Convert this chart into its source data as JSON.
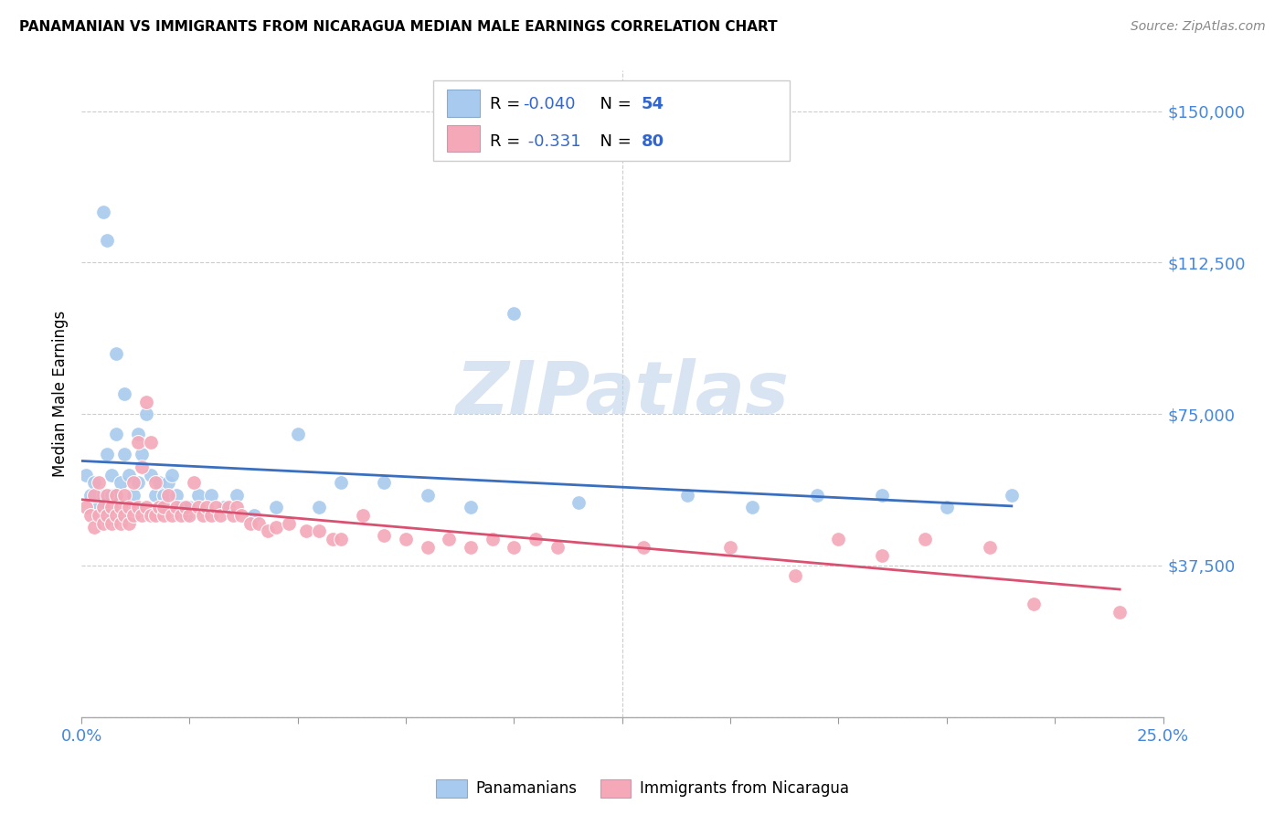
{
  "title": "PANAMANIAN VS IMMIGRANTS FROM NICARAGUA MEDIAN MALE EARNINGS CORRELATION CHART",
  "source": "Source: ZipAtlas.com",
  "ylabel": "Median Male Earnings",
  "yticks": [
    0,
    37500,
    75000,
    112500,
    150000
  ],
  "ytick_labels": [
    "",
    "$37,500",
    "$75,000",
    "$112,500",
    "$150,000"
  ],
  "xlim": [
    0.0,
    0.25
  ],
  "ylim": [
    0,
    160000
  ],
  "legend_label1": "Panamanians",
  "legend_label2": "Immigrants from Nicaragua",
  "R1": "-0.040",
  "N1": "54",
  "R2": "-0.331",
  "N2": "80",
  "color_blue": "#a8caee",
  "color_pink": "#f4a8b8",
  "line_color_blue": "#3a6fbf",
  "line_color_pink": "#d95070",
  "background_color": "#ffffff",
  "watermark": "ZIPatlas",
  "panamanian_x": [
    0.001,
    0.002,
    0.003,
    0.004,
    0.005,
    0.005,
    0.006,
    0.007,
    0.007,
    0.008,
    0.008,
    0.009,
    0.01,
    0.01,
    0.011,
    0.012,
    0.013,
    0.013,
    0.014,
    0.015,
    0.016,
    0.017,
    0.018,
    0.019,
    0.02,
    0.021,
    0.022,
    0.023,
    0.024,
    0.025,
    0.027,
    0.03,
    0.033,
    0.036,
    0.04,
    0.045,
    0.05,
    0.055,
    0.06,
    0.07,
    0.08,
    0.09,
    0.1,
    0.115,
    0.14,
    0.155,
    0.17,
    0.185,
    0.2,
    0.215,
    0.005,
    0.006,
    0.007,
    0.008
  ],
  "panamanian_y": [
    60000,
    55000,
    58000,
    52000,
    55000,
    50000,
    65000,
    60000,
    55000,
    90000,
    70000,
    58000,
    80000,
    65000,
    60000,
    55000,
    70000,
    58000,
    65000,
    75000,
    60000,
    55000,
    58000,
    55000,
    58000,
    60000,
    55000,
    52000,
    50000,
    52000,
    55000,
    55000,
    52000,
    55000,
    50000,
    52000,
    70000,
    52000,
    58000,
    58000,
    55000,
    52000,
    100000,
    53000,
    55000,
    52000,
    55000,
    55000,
    52000,
    55000,
    125000,
    118000,
    55000,
    55000
  ],
  "nicaragua_x": [
    0.001,
    0.002,
    0.003,
    0.003,
    0.004,
    0.004,
    0.005,
    0.005,
    0.006,
    0.006,
    0.007,
    0.007,
    0.008,
    0.008,
    0.009,
    0.009,
    0.01,
    0.01,
    0.011,
    0.011,
    0.012,
    0.012,
    0.013,
    0.013,
    0.014,
    0.014,
    0.015,
    0.015,
    0.016,
    0.016,
    0.017,
    0.017,
    0.018,
    0.019,
    0.019,
    0.02,
    0.021,
    0.022,
    0.023,
    0.024,
    0.025,
    0.026,
    0.027,
    0.028,
    0.029,
    0.03,
    0.031,
    0.032,
    0.034,
    0.035,
    0.036,
    0.037,
    0.039,
    0.041,
    0.043,
    0.045,
    0.048,
    0.052,
    0.055,
    0.058,
    0.06,
    0.065,
    0.07,
    0.075,
    0.08,
    0.085,
    0.09,
    0.095,
    0.1,
    0.105,
    0.11,
    0.13,
    0.15,
    0.165,
    0.175,
    0.185,
    0.195,
    0.21,
    0.22,
    0.24
  ],
  "nicaragua_y": [
    52000,
    50000,
    55000,
    47000,
    58000,
    50000,
    52000,
    48000,
    55000,
    50000,
    52000,
    48000,
    55000,
    50000,
    52000,
    48000,
    55000,
    50000,
    52000,
    48000,
    58000,
    50000,
    68000,
    52000,
    62000,
    50000,
    78000,
    52000,
    68000,
    50000,
    58000,
    50000,
    52000,
    50000,
    52000,
    55000,
    50000,
    52000,
    50000,
    52000,
    50000,
    58000,
    52000,
    50000,
    52000,
    50000,
    52000,
    50000,
    52000,
    50000,
    52000,
    50000,
    48000,
    48000,
    46000,
    47000,
    48000,
    46000,
    46000,
    44000,
    44000,
    50000,
    45000,
    44000,
    42000,
    44000,
    42000,
    44000,
    42000,
    44000,
    42000,
    42000,
    42000,
    35000,
    44000,
    40000,
    44000,
    42000,
    28000,
    26000
  ]
}
